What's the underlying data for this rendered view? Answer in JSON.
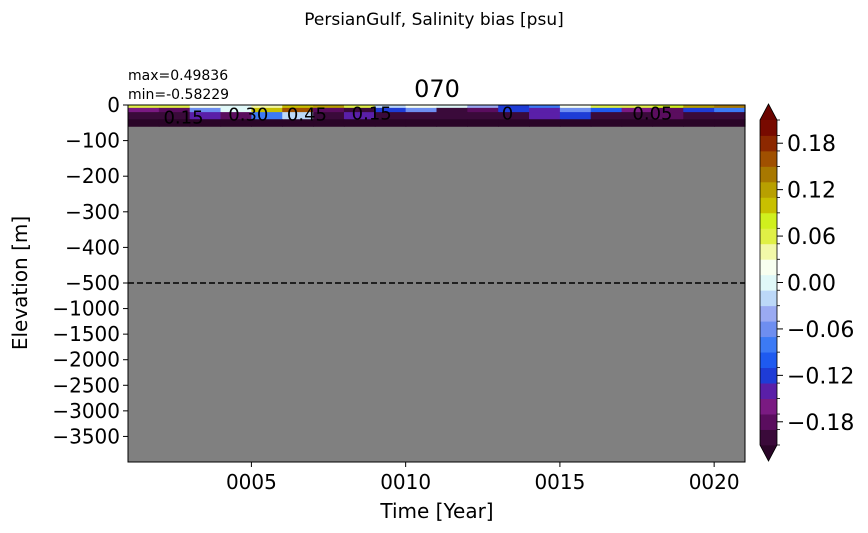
{
  "chart_data": {
    "type": "heatmap",
    "suptitle": "PersianGulf, Salinity bias [psu]",
    "title": "070",
    "stats": {
      "max_text": "max=0.49836",
      "min_text": "min=-0.58229"
    },
    "xlabel": "Time [Year]",
    "ylabel": "Elevation [m]",
    "x_ticks": [
      {
        "value": 5,
        "label": "0005"
      },
      {
        "value": 10,
        "label": "0010"
      },
      {
        "value": 15,
        "label": "0015"
      },
      {
        "value": 20,
        "label": "0020"
      }
    ],
    "xlim": [
      1,
      21
    ],
    "y_ticks_upper": [
      {
        "value": 0,
        "label": "0"
      },
      {
        "value": -100,
        "label": "−100"
      },
      {
        "value": -200,
        "label": "−200"
      },
      {
        "value": -300,
        "label": "−300"
      },
      {
        "value": -400,
        "label": "−400"
      },
      {
        "value": -500,
        "label": "−500"
      }
    ],
    "y_ticks_lower": [
      {
        "value": -1000,
        "label": "−1000"
      },
      {
        "value": -1500,
        "label": "−1500"
      },
      {
        "value": -2000,
        "label": "−2000"
      },
      {
        "value": -2500,
        "label": "−2500"
      },
      {
        "value": -3000,
        "label": "−3000"
      },
      {
        "value": -3500,
        "label": "−3500"
      }
    ],
    "ylim_upper": [
      -500,
      0
    ],
    "ylim_lower": [
      -4000,
      -500
    ],
    "split_depth": -500,
    "data_depth_limit": -60,
    "no_data_color": "#808080",
    "colorbar": {
      "vmin": -0.21,
      "vmax": 0.21,
      "levels": 21,
      "ticks": [
        {
          "value": 0.18,
          "label": "0.18"
        },
        {
          "value": 0.12,
          "label": "0.12"
        },
        {
          "value": 0.06,
          "label": "0.06"
        },
        {
          "value": 0.0,
          "label": "0.00"
        },
        {
          "value": -0.06,
          "label": "−0.06"
        },
        {
          "value": -0.12,
          "label": "−0.12"
        },
        {
          "value": -0.18,
          "label": "−0.18"
        }
      ],
      "colors": [
        "#3a0a3a",
        "#5a0d5e",
        "#7a1a82",
        "#5a1fa8",
        "#1e3cd6",
        "#1e5af0",
        "#3c7af5",
        "#6e8ef0",
        "#9aaaf2",
        "#bcd8f8",
        "#e0f8f8",
        "#f8fff0",
        "#f2f8a8",
        "#e0f046",
        "#d0f01e",
        "#c8c000",
        "#b8a000",
        "#a87800",
        "#a05000",
        "#8c2800",
        "#780a00"
      ],
      "extend_low_color": "#2a0528",
      "extend_high_color": "#6a0400"
    },
    "data_rows": [
      {
        "z_top": 0,
        "z_bottom": -8,
        "values": [
          0.06,
          0.05,
          0.02,
          0.0,
          0.03,
          0.09,
          0.12,
          0.05,
          -0.02,
          0.02,
          0.0,
          -0.05,
          -0.12,
          -0.08,
          0.02,
          0.05,
          0.06,
          0.08,
          0.12,
          0.14
        ]
      },
      {
        "z_top": -8,
        "z_bottom": -20,
        "values": [
          -0.16,
          -0.18,
          -0.06,
          0.0,
          0.1,
          0.15,
          -0.18,
          -0.2,
          -0.12,
          -0.06,
          -0.19,
          -0.17,
          -0.12,
          -0.14,
          -0.06,
          -0.1,
          -0.16,
          -0.18,
          -0.12,
          -0.08
        ]
      },
      {
        "z_top": -20,
        "z_bottom": -40,
        "values": [
          -0.2,
          -0.21,
          -0.15,
          -0.18,
          -0.09,
          -0.02,
          -0.21,
          -0.15,
          -0.19,
          -0.19,
          -0.2,
          -0.2,
          -0.2,
          -0.14,
          -0.13,
          -0.19,
          -0.21,
          -0.18,
          -0.2,
          -0.19
        ]
      },
      {
        "z_top": -40,
        "z_bottom": -60,
        "values": [
          -0.25,
          -0.25,
          -0.25,
          -0.25,
          -0.25,
          -0.25,
          -0.25,
          -0.25,
          -0.25,
          -0.25,
          -0.25,
          -0.25,
          -0.25,
          -0.25,
          -0.25,
          -0.25,
          -0.25,
          -0.25,
          -0.25,
          -0.25
        ]
      }
    ],
    "contour_labels": [
      {
        "x": 2.8,
        "z": -12,
        "text": "0.15"
      },
      {
        "x": 4.9,
        "z": -4,
        "text": "0.30"
      },
      {
        "x": 6.8,
        "z": -4,
        "text": "0.45"
      },
      {
        "x": 8.9,
        "z": -2,
        "text": "0.15"
      },
      {
        "x": 13.3,
        "z": -2,
        "text": "0"
      },
      {
        "x": 18.0,
        "z": -2,
        "text": "0.05"
      }
    ]
  }
}
